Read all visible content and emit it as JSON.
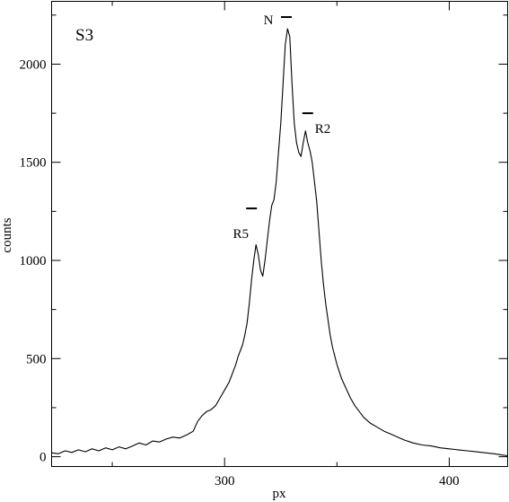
{
  "chart_data": {
    "type": "line",
    "title": "",
    "panel_label": "S3",
    "xlabel": "px",
    "ylabel": "counts",
    "xlim": [
      223,
      426
    ],
    "ylim": [
      -50,
      2320
    ],
    "grid": false,
    "x_ticks": [
      300,
      400
    ],
    "y_ticks": [
      0,
      500,
      1000,
      1500,
      2000
    ],
    "annotations": [
      {
        "label": "N",
        "x": 327.5,
        "y": 2240
      },
      {
        "label": "R2",
        "x": 337,
        "y": 1750
      },
      {
        "label": "R5",
        "x": 312,
        "y": 1265
      }
    ],
    "series": [
      {
        "x": [
          223,
          226,
          229,
          232,
          235,
          238,
          241,
          244,
          247,
          250,
          253,
          256,
          259,
          262,
          265,
          268,
          271,
          274,
          277,
          280,
          283,
          286,
          288,
          290,
          292,
          294,
          296,
          298,
          300,
          302,
          303,
          304,
          305,
          306,
          307,
          308,
          309,
          310,
          311,
          312,
          313,
          314,
          315,
          316,
          317,
          318,
          319,
          320,
          321,
          322,
          323,
          324,
          325,
          326,
          327,
          328,
          329,
          330,
          331,
          332,
          333,
          334,
          335,
          336,
          337,
          338,
          339,
          340,
          341,
          342,
          343,
          344,
          345,
          346,
          347,
          348,
          350,
          352,
          354,
          356,
          358,
          360,
          362,
          365,
          368,
          371,
          374,
          377,
          380,
          384,
          388,
          392,
          396,
          400,
          404,
          408,
          412,
          416,
          420,
          423,
          426
        ],
        "values": [
          20,
          15,
          30,
          22,
          35,
          25,
          40,
          30,
          45,
          35,
          50,
          40,
          55,
          70,
          60,
          80,
          75,
          90,
          100,
          95,
          110,
          130,
          180,
          210,
          230,
          240,
          260,
          300,
          340,
          380,
          410,
          440,
          470,
          510,
          540,
          570,
          620,
          680,
          780,
          900,
          1000,
          1080,
          1030,
          950,
          920,
          1000,
          1100,
          1200,
          1280,
          1310,
          1400,
          1550,
          1700,
          1900,
          2100,
          2180,
          2140,
          1900,
          1700,
          1600,
          1550,
          1530,
          1600,
          1660,
          1600,
          1560,
          1500,
          1400,
          1300,
          1150,
          1000,
          880,
          780,
          700,
          620,
          560,
          470,
          400,
          350,
          300,
          260,
          230,
          200,
          170,
          150,
          130,
          115,
          100,
          85,
          70,
          60,
          55,
          45,
          40,
          35,
          30,
          25,
          20,
          15,
          10,
          5
        ]
      }
    ]
  }
}
